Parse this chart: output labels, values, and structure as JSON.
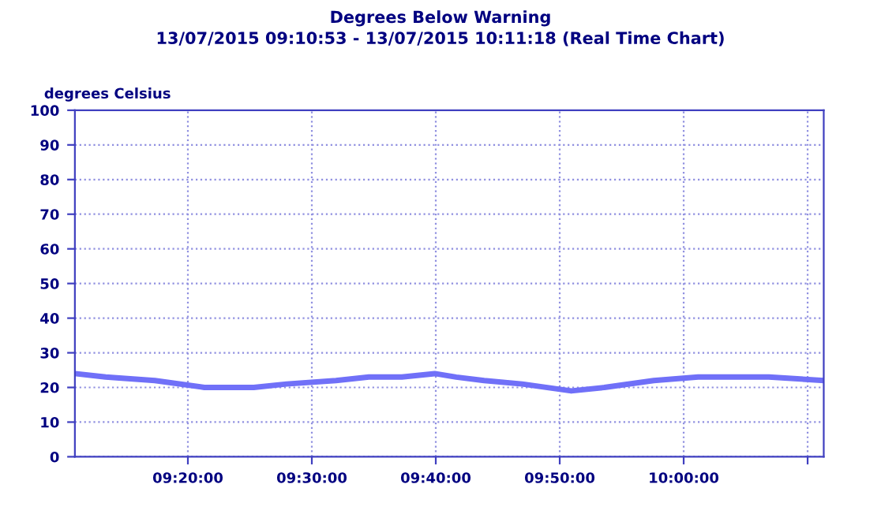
{
  "chart_data": {
    "type": "line",
    "title": "Degrees Below Warning",
    "subtitle": "13/07/2015 09:10:53 - 13/07/2015 10:11:18 (Real Time Chart)",
    "ylabel": "degrees Celsius",
    "x": [
      "2015-07-13T09:10:53",
      "2015-07-13T09:13:22",
      "2015-07-13T09:17:20",
      "2015-07-13T09:21:20",
      "2015-07-13T09:25:19",
      "2015-07-13T09:27:58",
      "2015-07-13T09:31:57",
      "2015-07-13T09:34:36",
      "2015-07-13T09:37:16",
      "2015-07-13T09:39:55",
      "2015-07-13T09:41:39",
      "2015-07-13T09:43:54",
      "2015-07-13T09:46:58",
      "2015-07-13T09:50:56",
      "2015-07-13T09:53:36",
      "2015-07-13T09:57:35",
      "2015-07-13T10:01:10",
      "2015-07-13T10:05:09",
      "2015-07-13T10:06:53",
      "2015-07-13T10:11:18"
    ],
    "series": [
      {
        "color": "#7070f8",
        "values": [
          24,
          23,
          22,
          20,
          20,
          21,
          22,
          23,
          23,
          24,
          23,
          22,
          21,
          19,
          20,
          22,
          23,
          23,
          23,
          22
        ]
      }
    ],
    "xlim": [
      "2015-07-13T09:10:53",
      "2015-07-13T10:11:18"
    ],
    "xticks": [
      {
        "value": "2015-07-13T09:20:00",
        "label": "09:20:00"
      },
      {
        "value": "2015-07-13T09:30:00",
        "label": "09:30:00"
      },
      {
        "value": "2015-07-13T09:40:00",
        "label": "09:40:00"
      },
      {
        "value": "2015-07-13T09:50:00",
        "label": "09:50:00"
      },
      {
        "value": "2015-07-13T10:00:00",
        "label": "10:00:00"
      },
      {
        "value": "2015-07-13T10:10:00",
        "label": null
      }
    ],
    "ylim": [
      0,
      100
    ],
    "yticks": [
      0,
      10,
      20,
      30,
      40,
      50,
      60,
      70,
      80,
      90,
      100
    ],
    "grid": true,
    "marker": "none",
    "line_style": "solid"
  }
}
